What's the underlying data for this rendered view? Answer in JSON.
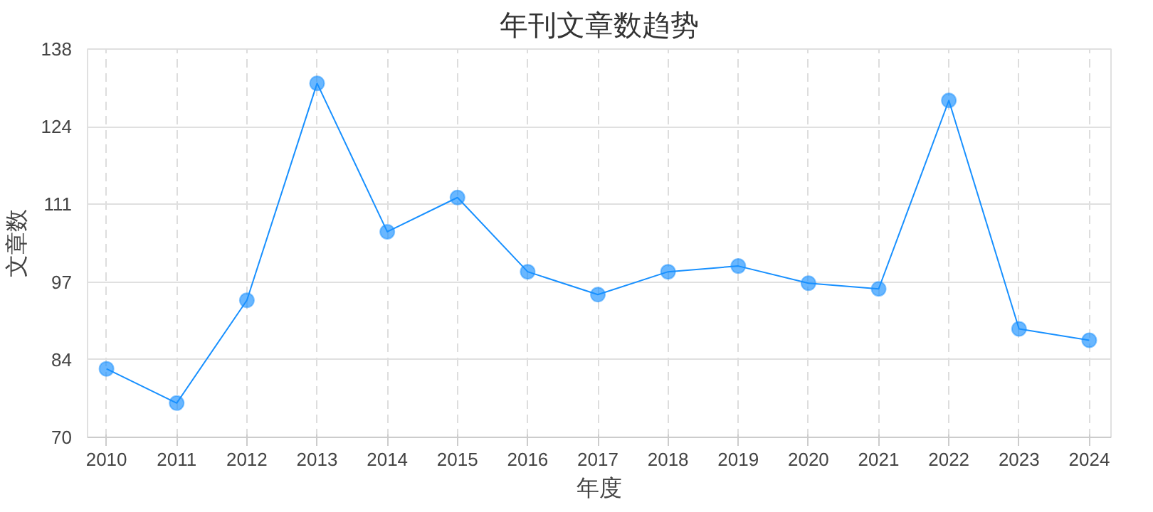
{
  "chart_data": {
    "type": "line",
    "title": "年刊文章数趋势",
    "xlabel": "年度",
    "ylabel": "文章数",
    "categories": [
      "2010",
      "2011",
      "2012",
      "2013",
      "2014",
      "2015",
      "2016",
      "2017",
      "2018",
      "2019",
      "2020",
      "2021",
      "2022",
      "2023",
      "2024"
    ],
    "series": [
      {
        "color": "#1890ff",
        "values": [
          82,
          76,
          94,
          132,
          106,
          112,
          99,
          95,
          99,
          100,
          97,
          96,
          129,
          89,
          87
        ]
      }
    ],
    "ylim": [
      70,
      138
    ],
    "yticks": [
      70,
      {
        "value": 83.6,
        "label": "84"
      },
      {
        "value": 97.2,
        "label": "97"
      },
      {
        "value": 110.8,
        "label": "111"
      },
      {
        "value": 124.4,
        "label": "124"
      },
      138
    ],
    "grid": true,
    "marker": "circle",
    "line_style": "solid"
  }
}
